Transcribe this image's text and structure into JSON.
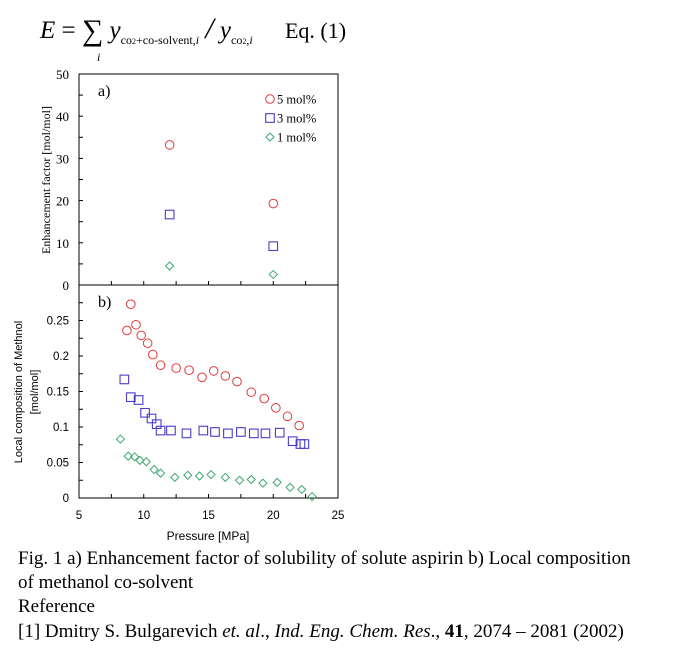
{
  "equation": {
    "lhs": "E",
    "equals": "=",
    "sum": "∑",
    "sum_index": "i",
    "numerator_var": "y",
    "numerator_sub": "co",
    "numerator_sub2": "2",
    "numerator_sub3": "+co-solvent,",
    "numerator_sub_i": "i",
    "slash": "/",
    "denominator_var": "y",
    "denominator_sub": "co",
    "denominator_sub2": "2",
    "denominator_sub3": ",",
    "denominator_sub_i": "i",
    "label": "Eq. (1)"
  },
  "chart_data": [
    {
      "type": "scatter",
      "panel_label": "a)",
      "ylabel": "Enhancement factor [mol/mol]",
      "xlim": [
        5,
        25
      ],
      "ylim": [
        0,
        50
      ],
      "yticks": [
        0,
        10,
        20,
        30,
        40,
        50
      ],
      "legend_placement": "top-right",
      "grid": false,
      "series": [
        {
          "name": "5 mol%",
          "marker": "circle",
          "color": "#e03a3a",
          "x": [
            12,
            20
          ],
          "y": [
            33.2,
            19.3
          ]
        },
        {
          "name": "3 mol%",
          "marker": "square",
          "color": "#4a3cc8",
          "x": [
            12,
            20
          ],
          "y": [
            16.7,
            9.2
          ]
        },
        {
          "name": "1 mol%",
          "marker": "diamond",
          "color": "#3da870",
          "x": [
            12,
            20
          ],
          "y": [
            4.5,
            2.5
          ]
        }
      ]
    },
    {
      "type": "scatter",
      "panel_label": "b)",
      "xlabel": "Pressure [MPa]",
      "ylabel_line1": "Local composition of Methnol",
      "ylabel_line2": "[mol/mol]",
      "xlim": [
        5,
        25
      ],
      "ylim": [
        0,
        0.3
      ],
      "xticks": [
        "5",
        "10",
        "15",
        "20",
        "25"
      ],
      "yticks": [
        "0",
        "0.05",
        "0.1",
        "0.15",
        "0.2",
        "0.25"
      ],
      "grid": false,
      "series": [
        {
          "marker": "circle",
          "color": "#e03a3a",
          "x": [
            8.7,
            9.0,
            9.4,
            9.8,
            10.3,
            10.7,
            11.3,
            12.5,
            13.5,
            14.5,
            15.4,
            16.3,
            17.2,
            18.3,
            19.3,
            20.2,
            21.1,
            22.0
          ],
          "y": [
            0.236,
            0.273,
            0.244,
            0.229,
            0.218,
            0.202,
            0.187,
            0.183,
            0.18,
            0.17,
            0.179,
            0.172,
            0.164,
            0.149,
            0.14,
            0.127,
            0.115,
            0.102
          ]
        },
        {
          "marker": "square",
          "color": "#4a3cc8",
          "x": [
            8.5,
            9.0,
            9.6,
            10.1,
            10.6,
            11.0,
            11.3,
            12.1,
            13.3,
            14.6,
            15.5,
            16.5,
            17.5,
            18.5,
            19.4,
            20.5,
            21.5,
            22.1,
            22.4
          ],
          "y": [
            0.167,
            0.142,
            0.138,
            0.12,
            0.112,
            0.104,
            0.095,
            0.095,
            0.091,
            0.095,
            0.093,
            0.091,
            0.093,
            0.091,
            0.091,
            0.092,
            0.08,
            0.076,
            0.076
          ]
        },
        {
          "marker": "diamond",
          "color": "#3da870",
          "x": [
            8.2,
            8.8,
            9.3,
            9.7,
            10.2,
            10.8,
            11.3,
            12.4,
            13.4,
            14.3,
            15.2,
            16.3,
            17.4,
            18.3,
            19.2,
            20.3,
            21.3,
            22.2,
            23.0
          ],
          "y": [
            0.083,
            0.059,
            0.058,
            0.053,
            0.051,
            0.04,
            0.035,
            0.029,
            0.032,
            0.031,
            0.033,
            0.029,
            0.025,
            0.026,
            0.021,
            0.022,
            0.015,
            0.012,
            0.002
          ]
        }
      ]
    }
  ],
  "caption": {
    "line1": "Fig. 1 a) Enhancement factor of solubility  of solute aspirin  b) Local composition",
    "line2": "of methanol co-solvent",
    "reference_heading": "Reference",
    "ref_prefix": "[1] Dmitry S. Bulgarevich ",
    "ref_etal": "et. al",
    "ref_comma": "., ",
    "ref_journal": "Ind. Eng. Chem. Res",
    "ref_mid": "., ",
    "ref_volume": "41",
    "ref_pages": ", 2074 – 2081 (2002)"
  }
}
